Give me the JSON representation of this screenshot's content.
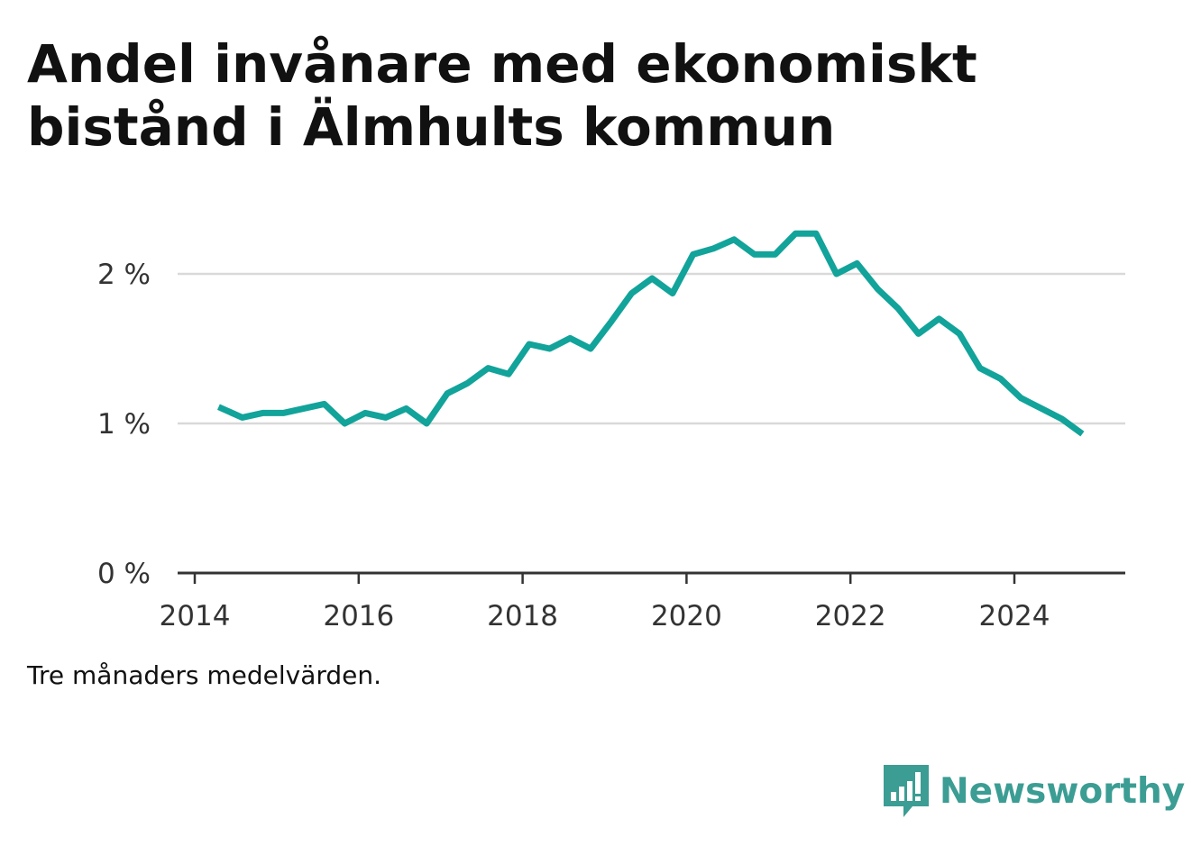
{
  "title": "Andel invånare med ekonomiskt bistånd i Älmhults kommun",
  "note": "Tre månaders medelvärden.",
  "brand": {
    "name": "Newsworthy",
    "icon": "bar-chart-speech-bubble-icon",
    "color": "#3b9d93"
  },
  "chart_data": {
    "type": "line",
    "title": "Andel invånare med ekonomiskt bistånd i Älmhults kommun",
    "xlabel": "",
    "ylabel": "",
    "xlim": [
      2014,
      2025.4
    ],
    "ylim": [
      0,
      2.4
    ],
    "x_ticks": [
      2014,
      2016,
      2018,
      2020,
      2022,
      2024
    ],
    "x_tick_labels": [
      "2014",
      "2016",
      "2018",
      "2020",
      "2022",
      "2024"
    ],
    "y_ticks": [
      0,
      1,
      2
    ],
    "y_tick_labels": [
      "0 %",
      "1 %",
      "2 %"
    ],
    "grid": "horizontal",
    "line_color": "#12a39a",
    "series": [
      {
        "x": [
          2014.29,
          2014.58,
          2014.83,
          2015.08,
          2015.33,
          2015.58,
          2015.83,
          2016.08,
          2016.33,
          2016.58,
          2016.83,
          2017.08,
          2017.33,
          2017.58,
          2017.83,
          2018.08,
          2018.33,
          2018.58,
          2018.83,
          2019.08,
          2019.33,
          2019.58,
          2019.83,
          2020.08,
          2020.33,
          2020.58,
          2020.83,
          2021.08,
          2021.33,
          2021.58,
          2021.83,
          2022.08,
          2022.33,
          2022.58,
          2022.83,
          2023.08,
          2023.33,
          2023.58,
          2023.83,
          2024.08,
          2024.33,
          2024.58,
          2024.83
        ],
        "values": [
          1.11,
          1.04,
          1.07,
          1.07,
          1.1,
          1.13,
          1.0,
          1.07,
          1.04,
          1.1,
          1.0,
          1.2,
          1.27,
          1.37,
          1.33,
          1.53,
          1.5,
          1.57,
          1.5,
          1.68,
          1.87,
          1.97,
          1.87,
          2.13,
          2.17,
          2.23,
          2.13,
          2.13,
          2.27,
          2.27,
          2.0,
          2.07,
          1.9,
          1.77,
          1.6,
          1.7,
          1.6,
          1.37,
          1.3,
          1.17,
          1.1,
          1.03,
          0.93
        ]
      }
    ]
  }
}
